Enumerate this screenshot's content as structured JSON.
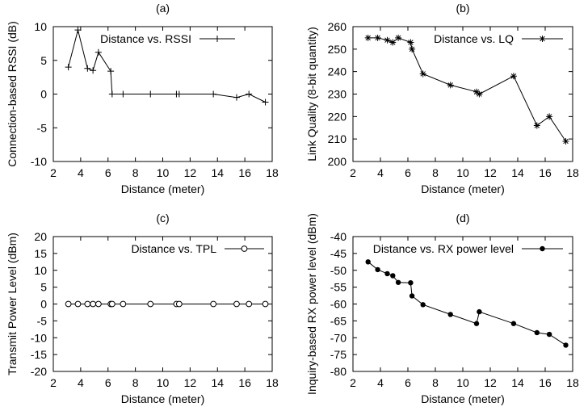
{
  "chart_data": [
    {
      "panel": "(a)",
      "type": "line",
      "xlabel": "Distance (meter)",
      "ylabel": "Connection-based RSSI (dB)",
      "xlim": [
        2,
        18
      ],
      "ylim": [
        -10,
        10
      ],
      "xticks": [
        "2",
        "4",
        "6",
        "8",
        "10",
        "12",
        "14",
        "16",
        "18"
      ],
      "yticks": [
        "-10",
        "-5",
        "0",
        "5",
        "10"
      ],
      "legend_position": "top-right",
      "series": [
        {
          "name": "Distance vs. RSSI",
          "marker": "plus",
          "x": [
            3.1,
            3.8,
            4.5,
            4.9,
            5.3,
            6.2,
            6.3,
            7.1,
            9.1,
            11.0,
            11.2,
            13.7,
            15.4,
            16.3,
            17.5
          ],
          "y": [
            4,
            9.5,
            3.8,
            3.5,
            6.2,
            3.4,
            0,
            0,
            0,
            0,
            0,
            0,
            -0.5,
            0,
            -1.2
          ]
        }
      ]
    },
    {
      "panel": "(b)",
      "type": "line",
      "xlabel": "Distance (meter)",
      "ylabel": "Link Quality (8-bit quantity)",
      "xlim": [
        2,
        18
      ],
      "ylim": [
        200,
        260
      ],
      "xticks": [
        "2",
        "4",
        "6",
        "8",
        "10",
        "12",
        "14",
        "16",
        "18"
      ],
      "yticks": [
        "200",
        "210",
        "220",
        "230",
        "240",
        "250",
        "260"
      ],
      "legend_position": "top-right",
      "series": [
        {
          "name": "Distance vs. LQ",
          "marker": "asterisk",
          "x": [
            3.1,
            3.8,
            4.5,
            4.9,
            5.3,
            6.2,
            6.3,
            7.1,
            9.1,
            11.0,
            11.2,
            13.7,
            15.4,
            16.3,
            17.5
          ],
          "y": [
            255,
            255,
            254,
            253,
            255,
            253,
            250,
            239,
            234,
            231,
            230,
            238,
            216,
            220,
            209
          ]
        }
      ]
    },
    {
      "panel": "(c)",
      "type": "line",
      "xlabel": "Distance (meter)",
      "ylabel": "Transmit Power Level (dBm)",
      "xlim": [
        2,
        18
      ],
      "ylim": [
        -20,
        20
      ],
      "xticks": [
        "2",
        "4",
        "6",
        "8",
        "10",
        "12",
        "14",
        "16",
        "18"
      ],
      "yticks": [
        "-20",
        "-15",
        "-10",
        "-5",
        "0",
        "5",
        "10",
        "15",
        "20"
      ],
      "legend_position": "top-right",
      "series": [
        {
          "name": "Distance vs. TPL",
          "marker": "circle-open",
          "x": [
            3.1,
            3.8,
            4.5,
            4.9,
            5.3,
            6.2,
            6.3,
            7.1,
            9.1,
            11.0,
            11.2,
            13.7,
            15.4,
            16.3,
            17.5
          ],
          "y": [
            0,
            0,
            0,
            0,
            0,
            0,
            0,
            0,
            0,
            0,
            0,
            0,
            0,
            0,
            0
          ]
        }
      ]
    },
    {
      "panel": "(d)",
      "type": "line",
      "xlabel": "Distance (meter)",
      "ylabel": "Inquiry-based RX power level (dBm)",
      "xlim": [
        2,
        18
      ],
      "ylim": [
        -80,
        -40
      ],
      "xticks": [
        "2",
        "4",
        "6",
        "8",
        "10",
        "12",
        "14",
        "16",
        "18"
      ],
      "yticks": [
        "-80",
        "-75",
        "-70",
        "-65",
        "-60",
        "-55",
        "-50",
        "-45",
        "-40"
      ],
      "legend_position": "top-right",
      "series": [
        {
          "name": "Distance vs. RX power level",
          "marker": "circle-filled",
          "x": [
            3.1,
            3.8,
            4.5,
            4.9,
            5.3,
            6.2,
            6.3,
            7.1,
            9.1,
            11.0,
            11.2,
            13.7,
            15.4,
            16.3,
            17.5
          ],
          "y": [
            -47.5,
            -49.8,
            -51.0,
            -51.6,
            -53.6,
            -53.7,
            -57.6,
            -60.2,
            -63.1,
            -65.8,
            -62.3,
            -65.8,
            -68.5,
            -69.0,
            -72.2
          ]
        }
      ]
    }
  ]
}
